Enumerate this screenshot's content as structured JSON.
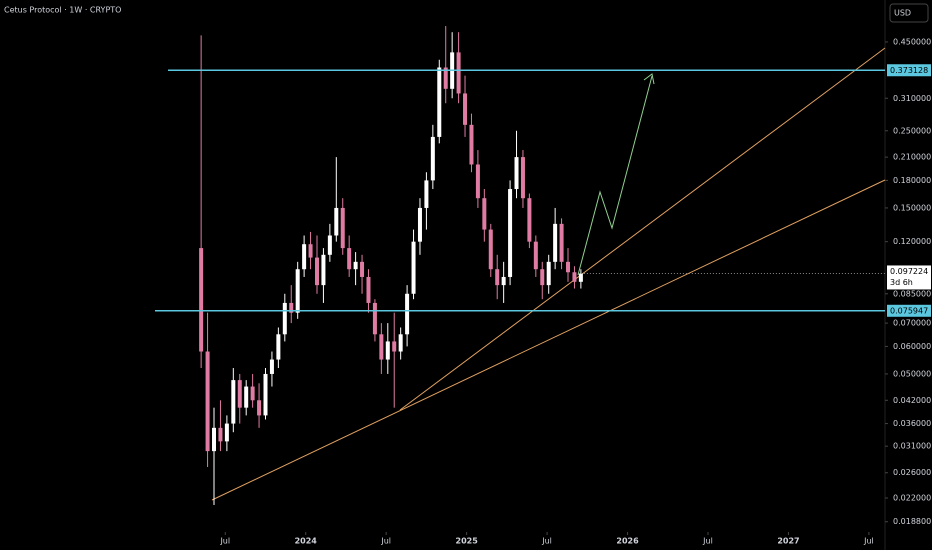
{
  "chart_data": {
    "type": "candlestick",
    "title": "Cetus Protocol · 1W · CRYPTO",
    "currency": "USD",
    "countdown": "3d 6h",
    "log_scale": true,
    "up_color": "#ffffff",
    "down_color": "#e07ca3",
    "level_color": "#5bc8e0",
    "levels": [
      0.373128,
      0.075947
    ],
    "x": [
      2023.35,
      2023.39,
      2023.43,
      2023.47,
      2023.51,
      2023.55,
      2023.59,
      2023.63,
      2023.67,
      2023.71,
      2023.75,
      2023.79,
      2023.83,
      2023.87,
      2023.91,
      2023.95,
      2023.99,
      2024.03,
      2024.07,
      2024.11,
      2024.15,
      2024.19,
      2024.23,
      2024.27,
      2024.31,
      2024.35,
      2024.39,
      2024.43,
      2024.47,
      2024.51,
      2024.55,
      2024.59,
      2024.63,
      2024.67,
      2024.71,
      2024.75,
      2024.79,
      2024.83,
      2024.87,
      2024.91,
      2024.95,
      2024.99,
      2025.03,
      2025.07,
      2025.11,
      2025.15,
      2025.19,
      2025.23,
      2025.27,
      2025.31,
      2025.35,
      2025.39,
      2025.43,
      2025.47,
      2025.51,
      2025.55,
      2025.59,
      2025.63,
      2025.67,
      2025.71
    ],
    "open": [
      0.115,
      0.058,
      0.03,
      0.035,
      0.032,
      0.036,
      0.048,
      0.04,
      0.046,
      0.042,
      0.038,
      0.05,
      0.055,
      0.065,
      0.08,
      0.075,
      0.1,
      0.118,
      0.108,
      0.09,
      0.11,
      0.125,
      0.15,
      0.115,
      0.1,
      0.105,
      0.095,
      0.08,
      0.065,
      0.055,
      0.062,
      0.058,
      0.065,
      0.085,
      0.12,
      0.15,
      0.18,
      0.24,
      0.38,
      0.33,
      0.42,
      0.32,
      0.26,
      0.2,
      0.16,
      0.13,
      0.1,
      0.09,
      0.095,
      0.17,
      0.21,
      0.16,
      0.12,
      0.1,
      0.09,
      0.105,
      0.135,
      0.105,
      0.098,
      0.092
    ],
    "high": [
      0.47,
      0.075,
      0.04,
      0.042,
      0.038,
      0.052,
      0.05,
      0.048,
      0.05,
      0.047,
      0.052,
      0.058,
      0.068,
      0.085,
      0.09,
      0.105,
      0.125,
      0.128,
      0.125,
      0.115,
      0.135,
      0.21,
      0.16,
      0.125,
      0.112,
      0.11,
      0.1,
      0.082,
      0.07,
      0.07,
      0.075,
      0.068,
      0.09,
      0.13,
      0.16,
      0.19,
      0.26,
      0.4,
      0.5,
      0.48,
      0.48,
      0.36,
      0.28,
      0.22,
      0.17,
      0.135,
      0.11,
      0.105,
      0.18,
      0.25,
      0.22,
      0.165,
      0.125,
      0.105,
      0.11,
      0.15,
      0.14,
      0.115,
      0.102,
      0.1
    ],
    "low": [
      0.052,
      0.027,
      0.021,
      0.03,
      0.03,
      0.034,
      0.036,
      0.038,
      0.04,
      0.035,
      0.037,
      0.046,
      0.052,
      0.062,
      0.07,
      0.072,
      0.095,
      0.1,
      0.085,
      0.08,
      0.105,
      0.12,
      0.11,
      0.095,
      0.09,
      0.085,
      0.075,
      0.062,
      0.05,
      0.05,
      0.04,
      0.055,
      0.06,
      0.082,
      0.11,
      0.13,
      0.17,
      0.23,
      0.3,
      0.31,
      0.3,
      0.24,
      0.19,
      0.15,
      0.12,
      0.095,
      0.082,
      0.08,
      0.09,
      0.16,
      0.15,
      0.115,
      0.095,
      0.082,
      0.085,
      0.1,
      0.1,
      0.092,
      0.088,
      0.088
    ],
    "close": [
      0.058,
      0.03,
      0.035,
      0.032,
      0.036,
      0.048,
      0.04,
      0.046,
      0.042,
      0.038,
      0.05,
      0.055,
      0.065,
      0.08,
      0.075,
      0.1,
      0.118,
      0.108,
      0.09,
      0.11,
      0.125,
      0.15,
      0.115,
      0.1,
      0.105,
      0.095,
      0.08,
      0.065,
      0.055,
      0.062,
      0.058,
      0.065,
      0.085,
      0.12,
      0.15,
      0.18,
      0.24,
      0.38,
      0.33,
      0.42,
      0.32,
      0.26,
      0.2,
      0.16,
      0.13,
      0.1,
      0.09,
      0.095,
      0.17,
      0.21,
      0.16,
      0.12,
      0.1,
      0.09,
      0.105,
      0.135,
      0.105,
      0.098,
      0.092,
      0.097224
    ],
    "xlim": [
      2022.1,
      2027.6
    ],
    "ylim": [
      0.0178,
      0.594
    ],
    "xticks": [
      {
        "value": 2023.5,
        "label": "Jul"
      },
      2024,
      {
        "value": 2024.5,
        "label": "Jul"
      },
      2025,
      {
        "value": 2025.5,
        "label": "Jul"
      },
      2026,
      {
        "value": 2026.5,
        "label": "Jul"
      },
      2027,
      {
        "value": 2027.5,
        "label": "Jul"
      }
    ],
    "yticks": [
      {
        "value": 0.45,
        "label": "0.450000"
      },
      {
        "value": 0.31,
        "label": "0.310000"
      },
      {
        "value": 0.25,
        "label": "0.250000"
      },
      {
        "value": 0.21,
        "label": "0.210000"
      },
      {
        "value": 0.18,
        "label": "0.180000"
      },
      {
        "value": 0.15,
        "label": "0.150000"
      },
      {
        "value": 0.12,
        "label": "0.120000"
      },
      {
        "value": 0.085,
        "label": "0.085000"
      },
      {
        "value": 0.07,
        "label": "0.070000"
      },
      {
        "value": 0.06,
        "label": "0.060000"
      },
      {
        "value": 0.05,
        "label": "0.050000"
      },
      {
        "value": 0.042,
        "label": "0.042000"
      },
      {
        "value": 0.036,
        "label": "0.036000"
      },
      {
        "value": 0.031,
        "label": "0.031000"
      },
      {
        "value": 0.026,
        "label": "0.026000"
      },
      {
        "value": 0.022,
        "label": "0.022000"
      },
      {
        "value": 0.0188,
        "label": "0.018800"
      }
    ]
  }
}
